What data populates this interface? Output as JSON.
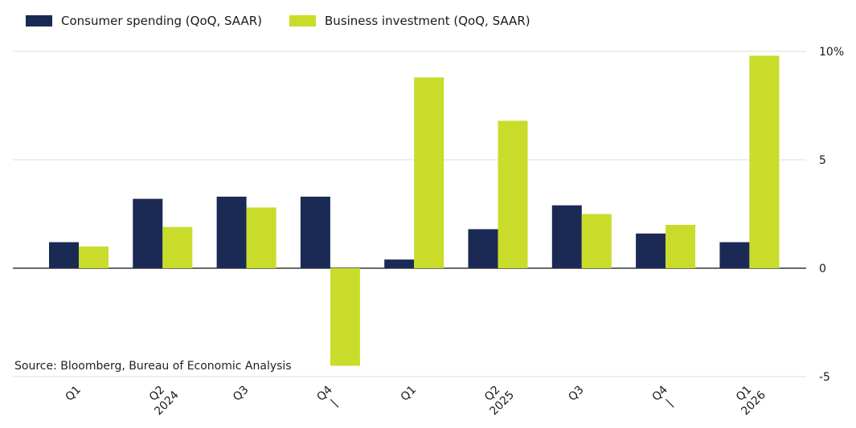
{
  "chart_data": {
    "type": "bar",
    "categories": [
      "Q1",
      "Q2",
      "Q3",
      "Q4",
      "Q1",
      "Q2",
      "Q3",
      "Q4",
      "Q1"
    ],
    "year_labels": [
      "",
      "2024",
      "",
      "",
      "",
      "2025",
      "",
      "",
      "2026"
    ],
    "series": [
      {
        "name": "Consumer spending (QoQ, SAAR)",
        "color": "#1b2a55",
        "values": [
          1.2,
          3.2,
          3.3,
          3.3,
          0.4,
          1.8,
          2.9,
          1.6,
          1.2
        ]
      },
      {
        "name": "Business investment (QoQ, SAAR)",
        "color": "#c9dc2a",
        "values": [
          1.0,
          1.9,
          2.8,
          -4.5,
          8.8,
          6.8,
          2.5,
          2.0,
          9.8
        ]
      }
    ],
    "ylim": [
      -5,
      10
    ],
    "yticks": [
      10,
      5,
      0,
      -5
    ],
    "ytick_labels": [
      "10%",
      "5",
      "0",
      "-5"
    ],
    "grid": true,
    "legend_position": "top-left",
    "source": "Source: Bloomberg, Bureau of Economic Analysis"
  }
}
